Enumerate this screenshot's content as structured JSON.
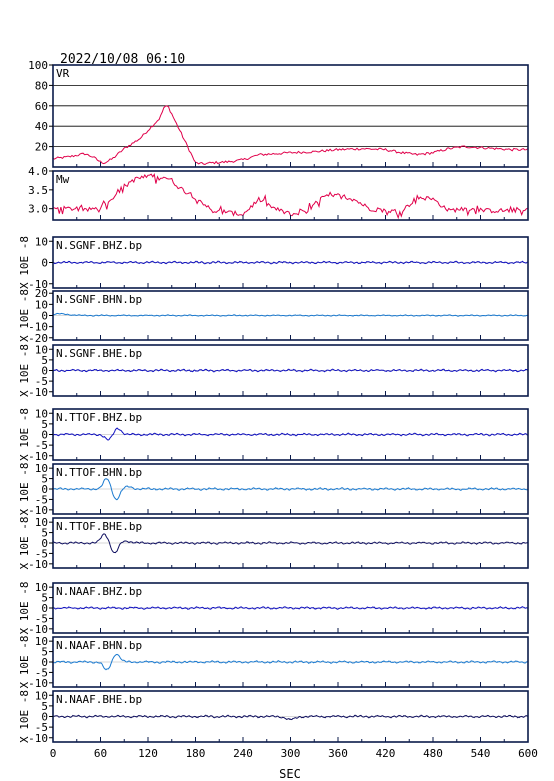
{
  "header": {
    "timestamp": "2022/10/08 06:10"
  },
  "chart_data": {
    "type": "line",
    "x_axis": {
      "label": "SEC",
      "range": [
        0,
        600
      ],
      "ticks": [
        "0",
        "60",
        "120",
        "180",
        "240",
        "300",
        "360",
        "420",
        "480",
        "540",
        "600"
      ]
    },
    "panels": [
      {
        "id": "vr",
        "label": "VR",
        "ylim": [
          0,
          100
        ],
        "ticks": [
          {
            "v": 100,
            "t": "100"
          },
          {
            "v": 80,
            "t": "80"
          },
          {
            "v": 60,
            "t": "60"
          },
          {
            "v": 40,
            "t": "40"
          },
          {
            "v": 20,
            "t": "20"
          }
        ],
        "grid": [
          20,
          40,
          60,
          80
        ],
        "color": "#e0004a",
        "kind": "vr",
        "x": [
          0,
          20,
          40,
          50,
          60,
          65,
          75,
          90,
          110,
          125,
          135,
          140,
          145,
          160,
          180,
          190,
          200,
          220,
          240,
          260,
          280,
          300,
          330,
          360,
          390,
          420,
          440,
          460,
          480,
          500,
          520,
          540,
          560,
          580,
          600
        ],
        "y": [
          8,
          10,
          13,
          10,
          5,
          4,
          8,
          18,
          28,
          40,
          48,
          58,
          60,
          36,
          4,
          3,
          4,
          5,
          7,
          12,
          13,
          14,
          15,
          17,
          18,
          17,
          14,
          12,
          14,
          18,
          20,
          19,
          18,
          17,
          17
        ]
      },
      {
        "id": "mw",
        "label": "Mw",
        "ylim": [
          2.7,
          4.0
        ],
        "ticks": [
          {
            "v": 4.0,
            "t": "4.0"
          },
          {
            "v": 3.5,
            "t": "3.5"
          },
          {
            "v": 3.0,
            "t": "3.0"
          }
        ],
        "grid": [],
        "color": "#e0004a",
        "kind": "mw",
        "x": [
          0,
          30,
          40,
          50,
          60,
          70,
          80,
          90,
          100,
          110,
          120,
          130,
          140,
          150,
          160,
          170,
          180,
          190,
          200,
          220,
          240,
          260,
          280,
          300,
          320,
          340,
          360,
          380,
          400,
          420,
          440,
          460,
          480,
          500,
          520,
          540,
          560,
          580,
          600
        ],
        "y": [
          3.0,
          3.0,
          2.95,
          3.0,
          3.05,
          3.15,
          3.4,
          3.6,
          3.75,
          3.82,
          3.85,
          3.8,
          3.85,
          3.75,
          3.55,
          3.45,
          3.3,
          3.15,
          2.95,
          2.9,
          2.85,
          3.25,
          3.0,
          2.85,
          2.9,
          3.3,
          3.35,
          3.25,
          3.0,
          2.95,
          2.92,
          3.3,
          3.25,
          2.95,
          3.0,
          2.95,
          2.95,
          2.95,
          3.0
        ]
      },
      {
        "id": "sgnf-bhz",
        "label": "N.SGNF.BHZ.bp",
        "unit": "X 10E -8",
        "ylim": [
          -12,
          12
        ],
        "ticks": [
          {
            "v": 10,
            "t": "10"
          },
          {
            "v": 0,
            "t": "0"
          },
          {
            "v": -10,
            "t": "-10"
          }
        ],
        "color": "#1010c0",
        "kind": "wave",
        "events": []
      },
      {
        "id": "sgnf-bhn",
        "label": "N.SGNF.BHN.bp",
        "unit": "X 10E -8",
        "ylim": [
          -22,
          22
        ],
        "ticks": [
          {
            "v": 20,
            "t": "20"
          },
          {
            "v": 10,
            "t": "10"
          },
          {
            "v": 0,
            "t": "0"
          },
          {
            "v": -10,
            "t": "-10"
          },
          {
            "v": -20,
            "t": "-20"
          }
        ],
        "color": "#1a7ad0",
        "kind": "wave",
        "events": [
          {
            "t": 10,
            "amp": 1.5,
            "w": 14
          }
        ]
      },
      {
        "id": "sgnf-bhe",
        "label": "N.SGNF.BHE.bp",
        "unit": "X 10E -8",
        "ylim": [
          -12,
          12
        ],
        "ticks": [
          {
            "v": 10,
            "t": "10"
          },
          {
            "v": 5,
            "t": "5"
          },
          {
            "v": 0,
            "t": "0"
          },
          {
            "v": -5,
            "t": "-5"
          },
          {
            "v": -10,
            "t": "-10"
          }
        ],
        "color": "#1010c0",
        "kind": "wave",
        "events": []
      },
      {
        "id": "ttof-bhz",
        "label": "N.TTOF.BHZ.bp",
        "unit": "X 10E -8",
        "ylim": [
          -12,
          12
        ],
        "ticks": [
          {
            "v": 10,
            "t": "10"
          },
          {
            "v": 5,
            "t": "5"
          },
          {
            "v": 0,
            "t": "0"
          },
          {
            "v": -5,
            "t": "-5"
          },
          {
            "v": -10,
            "t": "-10"
          }
        ],
        "color": "#1010c0",
        "kind": "wave",
        "events": [
          {
            "t": 70,
            "amp": -2.5,
            "w": 6
          },
          {
            "t": 82,
            "amp": 3,
            "w": 6
          }
        ]
      },
      {
        "id": "ttof-bhn",
        "label": "N.TTOF.BHN.bp",
        "unit": "X 10E -8",
        "ylim": [
          -12,
          12
        ],
        "ticks": [
          {
            "v": 10,
            "t": "10"
          },
          {
            "v": 5,
            "t": "5"
          },
          {
            "v": 0,
            "t": "0"
          },
          {
            "v": -5,
            "t": "-5"
          },
          {
            "v": -10,
            "t": "-10"
          }
        ],
        "color": "#1a7ad0",
        "kind": "wave",
        "events": [
          {
            "t": 68,
            "amp": 5,
            "w": 6
          },
          {
            "t": 80,
            "amp": -5,
            "w": 6
          },
          {
            "t": 95,
            "amp": 1,
            "w": 8
          }
        ]
      },
      {
        "id": "ttof-bhe",
        "label": "N.TTOF.BHE.bp",
        "unit": "X 10E -8",
        "ylim": [
          -12,
          12
        ],
        "ticks": [
          {
            "v": 10,
            "t": "10"
          },
          {
            "v": 5,
            "t": "5"
          },
          {
            "v": 0,
            "t": "0"
          },
          {
            "v": -5,
            "t": "-5"
          },
          {
            "v": -10,
            "t": "-10"
          }
        ],
        "color": "#101060",
        "kind": "wave",
        "events": [
          {
            "t": 65,
            "amp": 4.5,
            "w": 6
          },
          {
            "t": 78,
            "amp": -5,
            "w": 6
          },
          {
            "t": 92,
            "amp": 1,
            "w": 8
          }
        ]
      },
      {
        "id": "naaf-bhz",
        "label": "N.NAAF.BHZ.bp",
        "unit": "X 10E -8",
        "ylim": [
          -12,
          12
        ],
        "ticks": [
          {
            "v": 10,
            "t": "10"
          },
          {
            "v": 5,
            "t": "5"
          },
          {
            "v": 0,
            "t": "0"
          },
          {
            "v": -5,
            "t": "-5"
          },
          {
            "v": -10,
            "t": "-10"
          }
        ],
        "color": "#1010c0",
        "kind": "wave",
        "events": []
      },
      {
        "id": "naaf-bhn",
        "label": "N.NAAF.BHN.bp",
        "unit": "X 10E -8",
        "ylim": [
          -12,
          12
        ],
        "ticks": [
          {
            "v": 10,
            "t": "10"
          },
          {
            "v": 5,
            "t": "5"
          },
          {
            "v": 0,
            "t": "0"
          },
          {
            "v": -5,
            "t": "-5"
          },
          {
            "v": -10,
            "t": "-10"
          }
        ],
        "color": "#1a7ad0",
        "kind": "wave",
        "events": [
          {
            "t": 68,
            "amp": -4,
            "w": 6
          },
          {
            "t": 80,
            "amp": 4,
            "w": 6
          }
        ]
      },
      {
        "id": "naaf-bhe",
        "label": "N.NAAF.BHE.bp",
        "unit": "X 10E -8",
        "ylim": [
          -12,
          12
        ],
        "ticks": [
          {
            "v": 10,
            "t": "10"
          },
          {
            "v": 5,
            "t": "5"
          },
          {
            "v": 0,
            "t": "0"
          },
          {
            "v": -5,
            "t": "-5"
          },
          {
            "v": -10,
            "t": "-10"
          }
        ],
        "color": "#101060",
        "kind": "wave",
        "events": [
          {
            "t": 300,
            "amp": -1.5,
            "w": 8
          }
        ]
      }
    ]
  }
}
